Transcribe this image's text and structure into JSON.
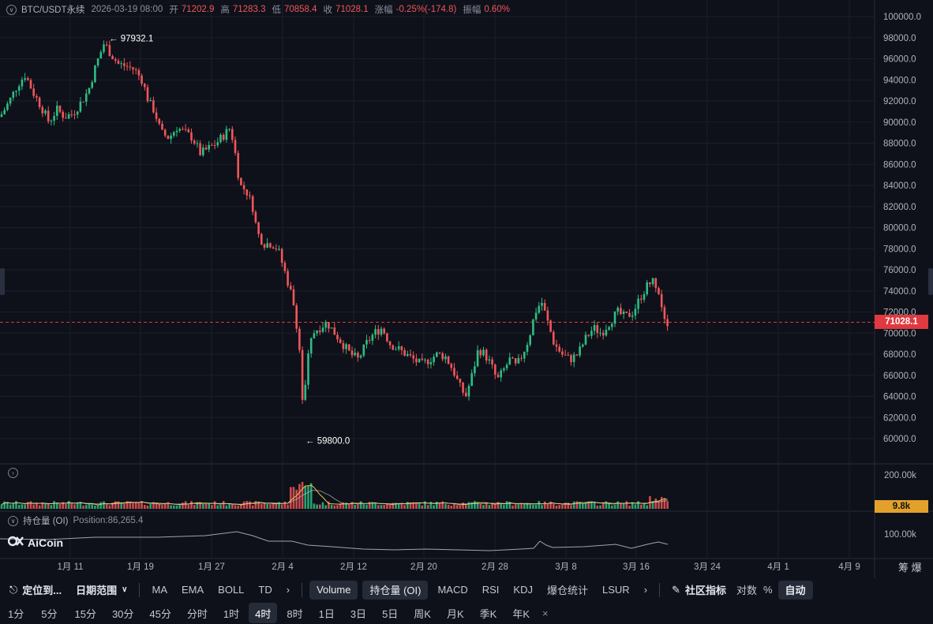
{
  "header": {
    "symbol": "BTC/USDT永续",
    "datetime": "2026-03-19 08:00",
    "open_label": "开",
    "open": "71202.9",
    "high_label": "高",
    "high": "71283.3",
    "low_label": "低",
    "low": "70858.4",
    "close_label": "收",
    "close": "71028.1",
    "change_label": "涨幅",
    "change": "-0.25%(-174.8)",
    "amp_label": "振幅",
    "amp": "0.60%"
  },
  "price_axis": {
    "ticks": [
      "100000.0",
      "98000.0",
      "96000.0",
      "94000.0",
      "92000.0",
      "90000.0",
      "88000.0",
      "86000.0",
      "84000.0",
      "82000.0",
      "80000.0",
      "78000.0",
      "76000.0",
      "74000.0",
      "72000.0",
      "70000.0",
      "68000.0",
      "66000.0",
      "64000.0",
      "62000.0",
      "60000.0"
    ],
    "current_price": "71028.1"
  },
  "annotations": {
    "high_mark": "97932.1",
    "low_mark": "59800.0"
  },
  "volume_panel": {
    "axis_max": "200.00k",
    "current": "9.8k"
  },
  "oi_panel": {
    "label": "持仓量 (OI)",
    "position_text": "Position:86,265.4",
    "axis": "100.00k"
  },
  "date_axis": {
    "labels": [
      "1月 11",
      "1月 19",
      "1月 27",
      "2月 4",
      "2月 12",
      "2月 20",
      "2月 28",
      "3月 8",
      "3月 16",
      "3月 24",
      "4月 1",
      "4月 9"
    ],
    "corner": "筹 爆"
  },
  "logo": {
    "text": "AiCoin"
  },
  "toolbar": {
    "locate": "定位到...",
    "date_range": "日期范围",
    "indicators": [
      "MA",
      "EMA",
      "BOLL",
      "TD"
    ],
    "sub_indicators": [
      "Volume",
      "持仓量 (OI)",
      "MACD",
      "RSI",
      "KDJ",
      "爆仓统计",
      "LSUR"
    ],
    "community": "社区指标",
    "log": "对数",
    "pct": "%",
    "auto": "自动"
  },
  "timeframes": {
    "items": [
      "1分",
      "5分",
      "15分",
      "30分",
      "45分",
      "分时",
      "1时",
      "4时",
      "8时",
      "1日",
      "3日",
      "5日",
      "周K",
      "月K",
      "季K",
      "年K"
    ],
    "active": "4时",
    "close": "×"
  },
  "colors": {
    "up": "#2ebd85",
    "down": "#f0565b",
    "bg": "#0e1119",
    "price_tag": "#e0393f",
    "vol_tag": "#e3a12c"
  },
  "chart_data": {
    "type": "candlestick",
    "interval": "4h",
    "ylim": [
      60000,
      100000
    ],
    "high": 97932.1,
    "low": 59800.0,
    "last": 71028.1,
    "path": [
      [
        0,
        90500
      ],
      [
        12,
        92000
      ],
      [
        22,
        93500
      ],
      [
        32,
        94500
      ],
      [
        42,
        92800
      ],
      [
        52,
        91500
      ],
      [
        62,
        90000
      ],
      [
        72,
        91200
      ],
      [
        82,
        90500
      ],
      [
        92,
        90800
      ],
      [
        102,
        91800
      ],
      [
        112,
        93000
      ],
      [
        122,
        95500
      ],
      [
        132,
        97500
      ],
      [
        140,
        96500
      ],
      [
        150,
        95500
      ],
      [
        160,
        95300
      ],
      [
        170,
        95000
      ],
      [
        180,
        94000
      ],
      [
        188,
        92000
      ],
      [
        196,
        91000
      ],
      [
        204,
        89000
      ],
      [
        214,
        88500
      ],
      [
        224,
        89500
      ],
      [
        234,
        89000
      ],
      [
        244,
        88500
      ],
      [
        254,
        87000
      ],
      [
        264,
        87500
      ],
      [
        274,
        88000
      ],
      [
        284,
        88800
      ],
      [
        292,
        89500
      ],
      [
        298,
        87000
      ],
      [
        304,
        84000
      ],
      [
        312,
        83500
      ],
      [
        320,
        82000
      ],
      [
        326,
        79500
      ],
      [
        334,
        78500
      ],
      [
        344,
        78500
      ],
      [
        352,
        78000
      ],
      [
        360,
        76000
      ],
      [
        368,
        74000
      ],
      [
        374,
        72000
      ],
      [
        380,
        68000
      ],
      [
        384,
        62500
      ],
      [
        390,
        67500
      ],
      [
        396,
        70000
      ],
      [
        404,
        70500
      ],
      [
        414,
        71000
      ],
      [
        424,
        70000
      ],
      [
        434,
        69000
      ],
      [
        444,
        68000
      ],
      [
        454,
        67500
      ],
      [
        464,
        69000
      ],
      [
        474,
        70000
      ],
      [
        484,
        70500
      ],
      [
        494,
        69000
      ],
      [
        504,
        68500
      ],
      [
        514,
        68000
      ],
      [
        524,
        67500
      ],
      [
        534,
        67000
      ],
      [
        544,
        67500
      ],
      [
        554,
        68000
      ],
      [
        564,
        67800
      ],
      [
        574,
        66500
      ],
      [
        582,
        65000
      ],
      [
        590,
        64000
      ],
      [
        598,
        66000
      ],
      [
        606,
        68500
      ],
      [
        614,
        68000
      ],
      [
        622,
        67000
      ],
      [
        630,
        65500
      ],
      [
        638,
        66500
      ],
      [
        646,
        67500
      ],
      [
        654,
        66800
      ],
      [
        662,
        68000
      ],
      [
        670,
        69500
      ],
      [
        678,
        72000
      ],
      [
        686,
        73000
      ],
      [
        694,
        71000
      ],
      [
        702,
        69000
      ],
      [
        712,
        68000
      ],
      [
        722,
        67500
      ],
      [
        732,
        68000
      ],
      [
        742,
        69500
      ],
      [
        752,
        70500
      ],
      [
        762,
        70000
      ],
      [
        772,
        71000
      ],
      [
        782,
        72000
      ],
      [
        792,
        71500
      ],
      [
        802,
        72000
      ],
      [
        812,
        73500
      ],
      [
        820,
        74500
      ],
      [
        828,
        75000
      ],
      [
        834,
        74200
      ],
      [
        840,
        72000
      ],
      [
        846,
        71028
      ]
    ]
  }
}
